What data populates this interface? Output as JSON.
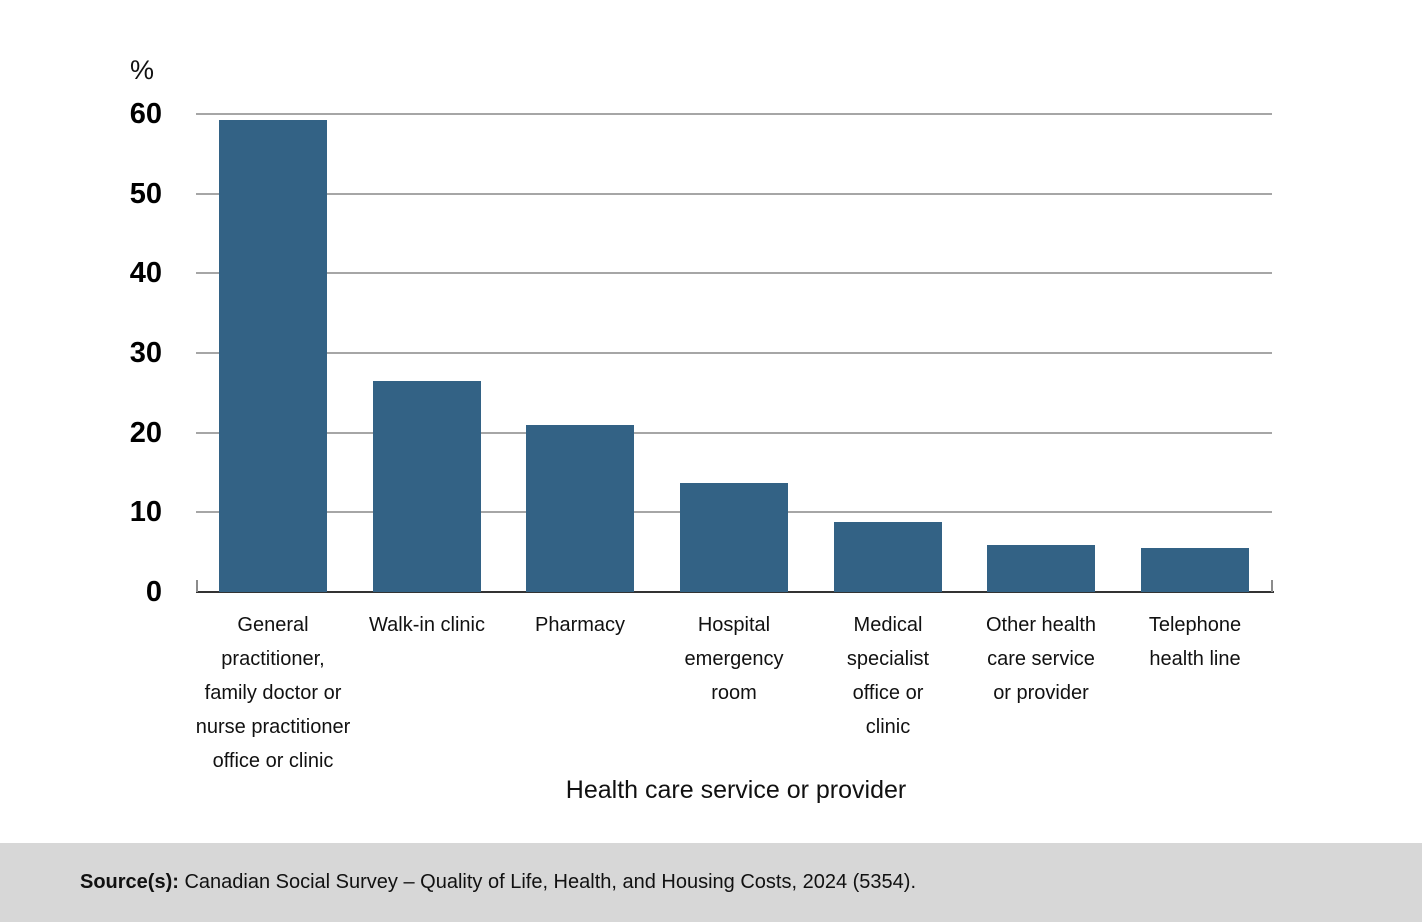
{
  "chart_data": {
    "type": "bar",
    "title": "",
    "xlabel": "Health care service or provider",
    "ylabel": "%",
    "categories": [
      "General practitioner, family doctor or nurse practitioner office or clinic",
      "Walk-in clinic",
      "Pharmacy",
      "Hospital emergency room",
      "Medical specialist office or clinic",
      "Other health care service or provider",
      "Telephone health line"
    ],
    "category_lines": [
      [
        "General",
        "practitioner,",
        "family doctor or",
        "nurse practitioner",
        "office or clinic"
      ],
      [
        "Walk-in clinic"
      ],
      [
        "Pharmacy"
      ],
      [
        "Hospital",
        "emergency",
        "room"
      ],
      [
        "Medical",
        "specialist",
        "office or",
        "clinic"
      ],
      [
        "Other health",
        "care service",
        "or provider"
      ],
      [
        "Telephone",
        "health line"
      ]
    ],
    "values": [
      59.3,
      26.5,
      21.0,
      13.7,
      8.8,
      5.9,
      5.5
    ],
    "ylim": [
      0,
      60
    ],
    "yticks": [
      0,
      10,
      20,
      30,
      40,
      50,
      60
    ],
    "grid": true,
    "legend": "none",
    "bar_color": "#336285"
  },
  "footer": {
    "source_label": "Source(s):",
    "source_text": " Canadian Social Survey – Quality of Life, Health, and Housing Costs, 2024 (5354)."
  },
  "colors": {
    "bar": "#336285",
    "gridline": "#a6a6a6",
    "baseline": "#333333",
    "footer_background": "#d7d7d7"
  }
}
